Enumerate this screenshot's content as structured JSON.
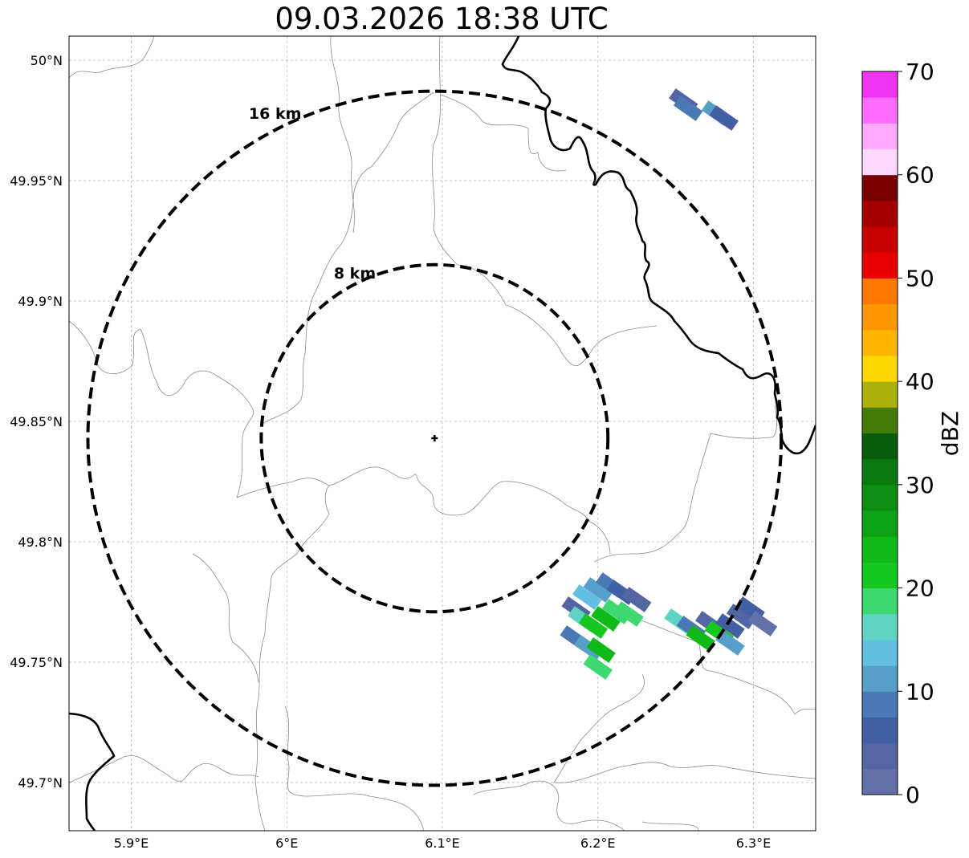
{
  "title": "09.03.2026 18:38 UTC",
  "map": {
    "lon_range": [
      5.86,
      6.34
    ],
    "lat_range": [
      49.68,
      50.01
    ],
    "lon_ticks": [
      {
        "value": 5.9,
        "label": "5.9°E"
      },
      {
        "value": 6.0,
        "label": "6°E"
      },
      {
        "value": 6.1,
        "label": "6.1°E"
      },
      {
        "value": 6.2,
        "label": "6.2°E"
      },
      {
        "value": 6.3,
        "label": "6.3°E"
      }
    ],
    "lat_ticks": [
      {
        "value": 49.7,
        "label": "49.7°N"
      },
      {
        "value": 49.75,
        "label": "49.75°N"
      },
      {
        "value": 49.8,
        "label": "49.8°N"
      },
      {
        "value": 49.85,
        "label": "49.85°N"
      },
      {
        "value": 49.9,
        "label": "49.9°N"
      },
      {
        "value": 49.95,
        "label": "49.95°N"
      },
      {
        "value": 50.0,
        "label": "50°N"
      }
    ],
    "radar_site": {
      "lon": 6.095,
      "lat": 49.843
    },
    "range_rings": [
      {
        "label": "8 km",
        "radius_km": 8
      },
      {
        "label": "16 km",
        "radius_km": 16
      }
    ]
  },
  "colorbar": {
    "label": "dBZ",
    "ticks": [
      "0",
      "10",
      "20",
      "30",
      "40",
      "50",
      "60",
      "70"
    ],
    "min": 0,
    "max": 70,
    "step": 2.5,
    "colors": [
      "#6272a8",
      "#5366a3",
      "#4460a4",
      "#4a79b4",
      "#569fc9",
      "#62bfdf",
      "#5ed3c3",
      "#3dd970",
      "#14c81e",
      "#10b818",
      "#0ea316",
      "#0c8e12",
      "#0a7a10",
      "#075d0c",
      "#457c09",
      "#acb009",
      "#ffd800",
      "#ffb600",
      "#ff9800",
      "#ff7800",
      "#e80000",
      "#c80000",
      "#a40000",
      "#7a0000",
      "#ffd8ff",
      "#ffaaff",
      "#ff6cff",
      "#f033f0"
    ]
  },
  "reflectivity_cells": [
    {
      "lon": 6.255,
      "lat": 49.983,
      "dbz": 4
    },
    {
      "lon": 6.258,
      "lat": 49.98,
      "dbz": 8
    },
    {
      "lon": 6.276,
      "lat": 49.978,
      "dbz": 12
    },
    {
      "lon": 6.281,
      "lat": 49.976,
      "dbz": 5
    },
    {
      "lon": 6.186,
      "lat": 49.772,
      "dbz": 3
    },
    {
      "lon": 6.193,
      "lat": 49.777,
      "dbz": 14
    },
    {
      "lon": 6.2,
      "lat": 49.78,
      "dbz": 12
    },
    {
      "lon": 6.208,
      "lat": 49.782,
      "dbz": 9
    },
    {
      "lon": 6.215,
      "lat": 49.779,
      "dbz": 7
    },
    {
      "lon": 6.19,
      "lat": 49.768,
      "dbz": 17
    },
    {
      "lon": 6.197,
      "lat": 49.765,
      "dbz": 22
    },
    {
      "lon": 6.205,
      "lat": 49.768,
      "dbz": 24
    },
    {
      "lon": 6.212,
      "lat": 49.771,
      "dbz": 18
    },
    {
      "lon": 6.22,
      "lat": 49.77,
      "dbz": 19
    },
    {
      "lon": 6.185,
      "lat": 49.76,
      "dbz": 8
    },
    {
      "lon": 6.194,
      "lat": 49.756,
      "dbz": 12
    },
    {
      "lon": 6.202,
      "lat": 49.755,
      "dbz": 24
    },
    {
      "lon": 6.2,
      "lat": 49.748,
      "dbz": 18
    },
    {
      "lon": 6.225,
      "lat": 49.776,
      "dbz": 3
    },
    {
      "lon": 6.252,
      "lat": 49.767,
      "dbz": 16
    },
    {
      "lon": 6.26,
      "lat": 49.764,
      "dbz": 9
    },
    {
      "lon": 6.266,
      "lat": 49.76,
      "dbz": 23
    },
    {
      "lon": 6.272,
      "lat": 49.766,
      "dbz": 4
    },
    {
      "lon": 6.278,
      "lat": 49.762,
      "dbz": 21
    },
    {
      "lon": 6.285,
      "lat": 49.765,
      "dbz": 7
    },
    {
      "lon": 6.292,
      "lat": 49.769,
      "dbz": 3
    },
    {
      "lon": 6.298,
      "lat": 49.772,
      "dbz": 5
    },
    {
      "lon": 6.306,
      "lat": 49.766,
      "dbz": 2
    },
    {
      "lon": 6.285,
      "lat": 49.758,
      "dbz": 10
    }
  ]
}
